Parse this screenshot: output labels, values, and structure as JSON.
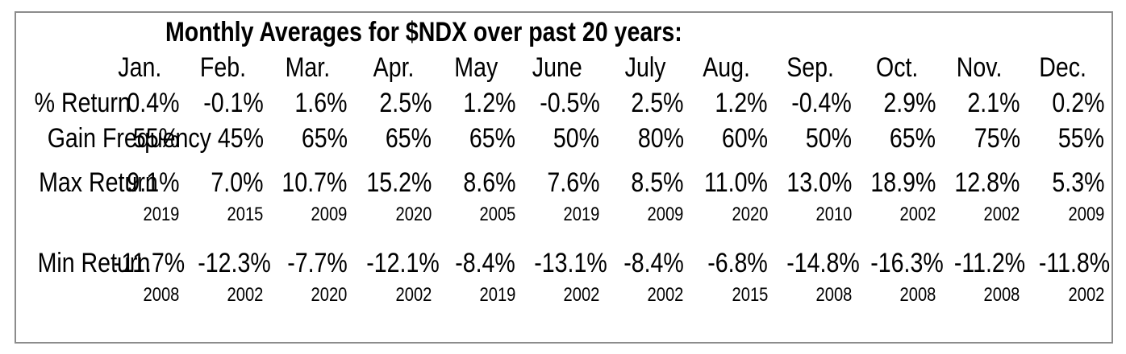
{
  "table": {
    "title": "Monthly Averages for $NDX over past 20 years:",
    "months": [
      "Jan.",
      "Feb.",
      "Mar.",
      "Apr.",
      "May",
      "June",
      "July",
      "Aug.",
      "Sep.",
      "Oct.",
      "Nov.",
      "Dec."
    ],
    "rows": {
      "pct_return": {
        "label": "% Return",
        "values": [
          "0.4%",
          "-0.1%",
          "1.6%",
          "2.5%",
          "1.2%",
          "-0.5%",
          "2.5%",
          "1.2%",
          "-0.4%",
          "2.9%",
          "2.1%",
          "0.2%"
        ]
      },
      "gain_frequency": {
        "label": "Gain Frequency",
        "values": [
          "55%",
          "45%",
          "65%",
          "65%",
          "65%",
          "50%",
          "80%",
          "60%",
          "50%",
          "65%",
          "75%",
          "55%"
        ]
      },
      "max_return": {
        "label": "Max Return",
        "values": [
          "9.1%",
          "7.0%",
          "10.7%",
          "15.2%",
          "8.6%",
          "7.6%",
          "8.5%",
          "11.0%",
          "13.0%",
          "18.9%",
          "12.8%",
          "5.3%"
        ],
        "years": [
          "2019",
          "2015",
          "2009",
          "2020",
          "2005",
          "2019",
          "2009",
          "2020",
          "2010",
          "2002",
          "2002",
          "2009"
        ]
      },
      "min_return": {
        "label": "Min Return",
        "values": [
          "-11.7%",
          "-12.3%",
          "-7.7%",
          "-12.1%",
          "-8.4%",
          "-13.1%",
          "-8.4%",
          "-6.8%",
          "-14.8%",
          "-16.3%",
          "-11.2%",
          "-11.8%"
        ],
        "years": [
          "2008",
          "2002",
          "2020",
          "2002",
          "2019",
          "2002",
          "2002",
          "2015",
          "2008",
          "2008",
          "2008",
          "2002"
        ]
      }
    }
  },
  "chart_data": {
    "type": "table",
    "title": "Monthly Averages for $NDX over past 20 years:",
    "categories": [
      "Jan.",
      "Feb.",
      "Mar.",
      "Apr.",
      "May",
      "June",
      "July",
      "Aug.",
      "Sep.",
      "Oct.",
      "Nov.",
      "Dec."
    ],
    "series": [
      {
        "name": "% Return",
        "unit": "%",
        "values": [
          0.4,
          -0.1,
          1.6,
          2.5,
          1.2,
          -0.5,
          2.5,
          1.2,
          -0.4,
          2.9,
          2.1,
          0.2
        ]
      },
      {
        "name": "Gain Frequency",
        "unit": "%",
        "values": [
          55,
          45,
          65,
          65,
          65,
          50,
          80,
          60,
          50,
          65,
          75,
          55
        ]
      },
      {
        "name": "Max Return",
        "unit": "%",
        "values": [
          9.1,
          7.0,
          10.7,
          15.2,
          8.6,
          7.6,
          8.5,
          11.0,
          13.0,
          18.9,
          12.8,
          5.3
        ],
        "years": [
          2019,
          2015,
          2009,
          2020,
          2005,
          2019,
          2009,
          2020,
          2010,
          2002,
          2002,
          2009
        ]
      },
      {
        "name": "Min Return",
        "unit": "%",
        "values": [
          -11.7,
          -12.3,
          -7.7,
          -12.1,
          -8.4,
          -13.1,
          -8.4,
          -6.8,
          -14.8,
          -16.3,
          -11.2,
          -11.8
        ],
        "years": [
          2008,
          2002,
          2020,
          2002,
          2019,
          2002,
          2002,
          2015,
          2008,
          2008,
          2008,
          2002
        ]
      }
    ],
    "colors": {
      "text": "#000000",
      "border": "#8c8c8c",
      "background": "#ffffff"
    }
  }
}
